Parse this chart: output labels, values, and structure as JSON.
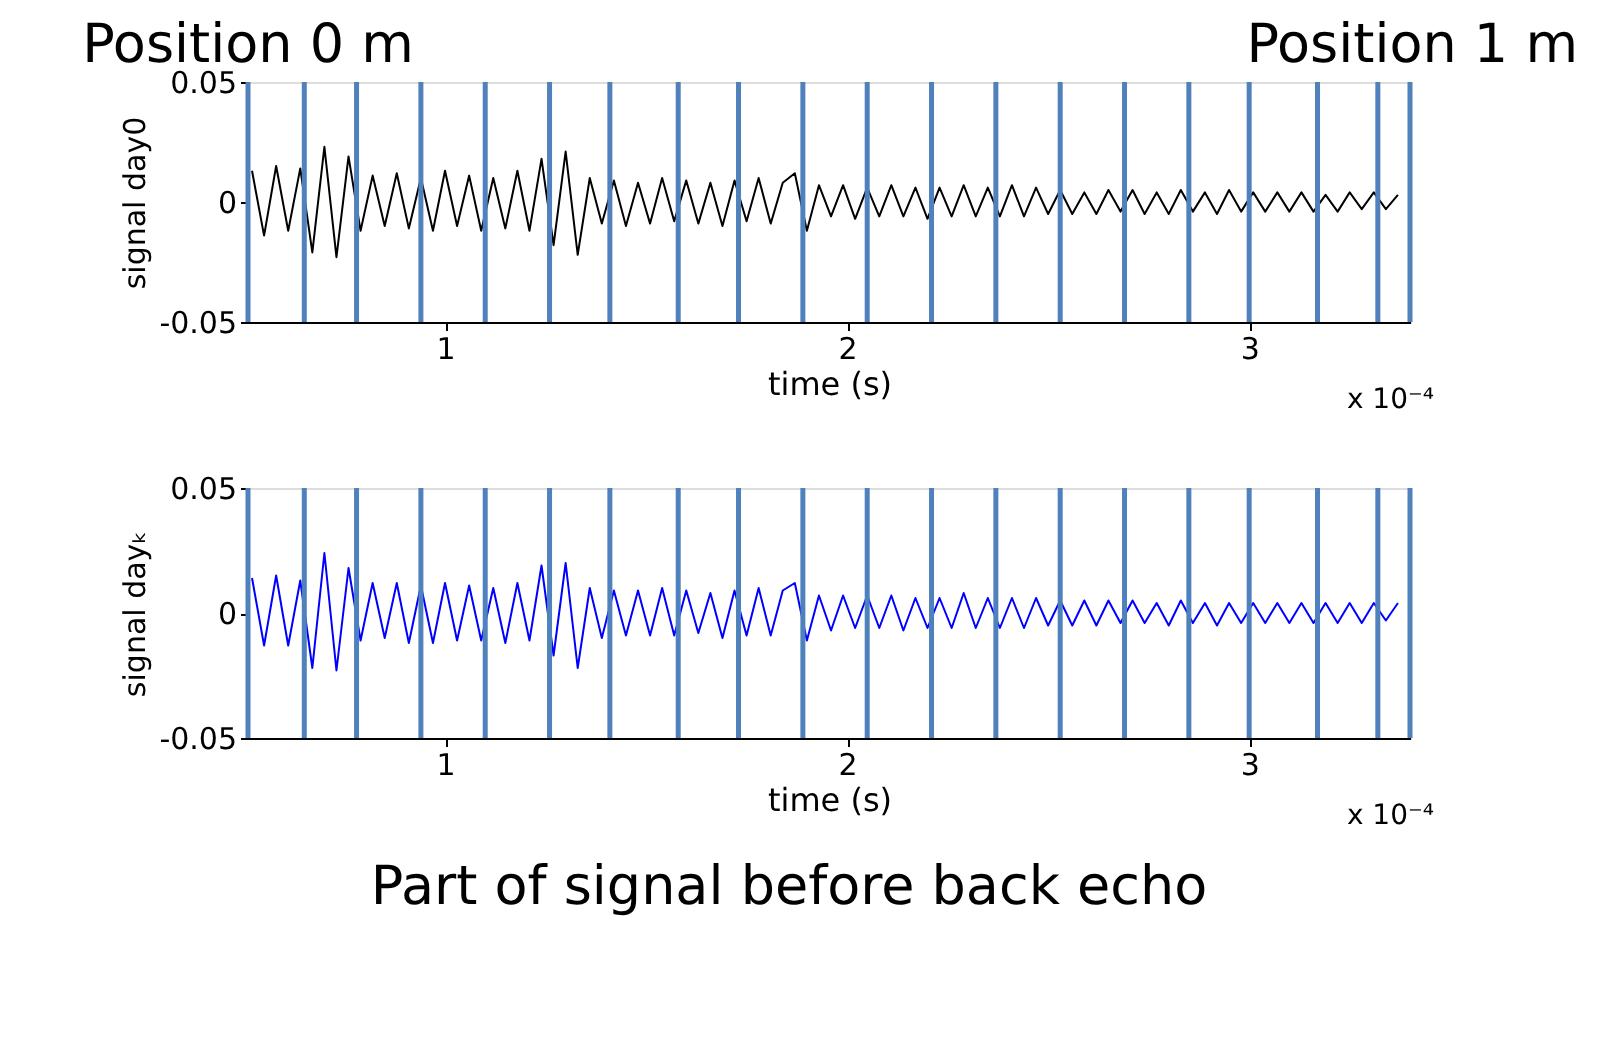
{
  "chart_data": [
    {
      "type": "line",
      "xlabel": "time (s)",
      "ylabel": "signal day0",
      "xlim": [
        0.51,
        3.4
      ],
      "ylim": [
        -0.05,
        0.05
      ],
      "xticks": [
        1,
        2,
        3
      ],
      "yticks": [
        -0.05,
        0,
        0.05
      ],
      "grid": false,
      "x": [
        0.52,
        0.55,
        0.58,
        0.61,
        0.64,
        0.67,
        0.7,
        0.73,
        0.76,
        0.79,
        0.82,
        0.85,
        0.88,
        0.91,
        0.94,
        0.97,
        1.0,
        1.03,
        1.06,
        1.09,
        1.12,
        1.15,
        1.18,
        1.21,
        1.24,
        1.27,
        1.3,
        1.33,
        1.36,
        1.39,
        1.42,
        1.45,
        1.48,
        1.51,
        1.54,
        1.57,
        1.6,
        1.63,
        1.66,
        1.69,
        1.72,
        1.75,
        1.78,
        1.81,
        1.84,
        1.87,
        1.9,
        1.93,
        1.96,
        1.99,
        2.02,
        2.05,
        2.08,
        2.11,
        2.14,
        2.17,
        2.2,
        2.23,
        2.26,
        2.29,
        2.32,
        2.35,
        2.38,
        2.41,
        2.44,
        2.47,
        2.5,
        2.53,
        2.56,
        2.59,
        2.62,
        2.65,
        2.68,
        2.71,
        2.74,
        2.77,
        2.8,
        2.83,
        2.86,
        2.89,
        2.92,
        2.95,
        2.98,
        3.01,
        3.04,
        3.07,
        3.1,
        3.13,
        3.16,
        3.19,
        3.22,
        3.25,
        3.28,
        3.31,
        3.34,
        3.37
      ],
      "series": [
        {
          "color": "#000000",
          "values": [
            0.013,
            -0.014,
            0.015,
            -0.012,
            0.014,
            -0.021,
            0.023,
            -0.023,
            0.019,
            -0.012,
            0.011,
            -0.01,
            0.012,
            -0.011,
            0.01,
            -0.012,
            0.013,
            -0.01,
            0.011,
            -0.012,
            0.01,
            -0.011,
            0.013,
            -0.012,
            0.018,
            -0.018,
            0.021,
            -0.022,
            0.01,
            -0.009,
            0.009,
            -0.01,
            0.008,
            -0.009,
            0.01,
            -0.008,
            0.009,
            -0.009,
            0.008,
            -0.01,
            0.009,
            -0.008,
            0.01,
            -0.009,
            0.008,
            0.012,
            -0.012,
            0.007,
            -0.006,
            0.007,
            -0.007,
            0.006,
            -0.006,
            0.007,
            -0.006,
            0.006,
            -0.007,
            0.006,
            -0.006,
            0.007,
            -0.006,
            0.006,
            -0.006,
            0.007,
            -0.006,
            0.006,
            -0.005,
            0.005,
            -0.005,
            0.004,
            -0.005,
            0.005,
            -0.004,
            0.005,
            -0.005,
            0.004,
            -0.005,
            0.005,
            -0.004,
            0.004,
            -0.005,
            0.005,
            -0.004,
            0.004,
            -0.004,
            0.004,
            -0.004,
            0.004,
            -0.004,
            0.003,
            -0.004,
            0.004,
            -0.003,
            0.004,
            -0.003,
            0.003
          ]
        }
      ],
      "ref_lines": [
        {
          "axis": "x",
          "value": 0.51,
          "color": "#4f81bd",
          "label": "Position 0 m"
        },
        {
          "axis": "x",
          "value": 0.65,
          "color": "#4f81bd"
        },
        {
          "axis": "x",
          "value": 0.78,
          "color": "#4f81bd"
        },
        {
          "axis": "x",
          "value": 0.94,
          "color": "#4f81bd"
        },
        {
          "axis": "x",
          "value": 1.1,
          "color": "#4f81bd"
        },
        {
          "axis": "x",
          "value": 1.26,
          "color": "#4f81bd"
        },
        {
          "axis": "x",
          "value": 1.41,
          "color": "#4f81bd"
        },
        {
          "axis": "x",
          "value": 1.58,
          "color": "#4f81bd"
        },
        {
          "axis": "x",
          "value": 1.73,
          "color": "#4f81bd"
        },
        {
          "axis": "x",
          "value": 1.89,
          "color": "#4f81bd"
        },
        {
          "axis": "x",
          "value": 2.05,
          "color": "#4f81bd"
        },
        {
          "axis": "x",
          "value": 2.21,
          "color": "#4f81bd"
        },
        {
          "axis": "x",
          "value": 2.37,
          "color": "#4f81bd"
        },
        {
          "axis": "x",
          "value": 2.53,
          "color": "#4f81bd"
        },
        {
          "axis": "x",
          "value": 2.69,
          "color": "#4f81bd"
        },
        {
          "axis": "x",
          "value": 2.85,
          "color": "#4f81bd"
        },
        {
          "axis": "x",
          "value": 3.0,
          "color": "#4f81bd"
        },
        {
          "axis": "x",
          "value": 3.17,
          "color": "#4f81bd"
        },
        {
          "axis": "x",
          "value": 3.32,
          "color": "#4f81bd"
        },
        {
          "axis": "x",
          "value": 3.4,
          "color": "#4f81bd",
          "label": "Position 1 m"
        }
      ],
      "annotations": [
        "x 10⁻⁴"
      ]
    },
    {
      "type": "line",
      "xlabel": "time (s)",
      "ylabel": "signal dayₖ",
      "xlim": [
        0.51,
        3.4
      ],
      "ylim": [
        -0.05,
        0.05
      ],
      "xticks": [
        1,
        2,
        3
      ],
      "yticks": [
        -0.05,
        0,
        0.05
      ],
      "grid": false,
      "x": [
        0.52,
        0.55,
        0.58,
        0.61,
        0.64,
        0.67,
        0.7,
        0.73,
        0.76,
        0.79,
        0.82,
        0.85,
        0.88,
        0.91,
        0.94,
        0.97,
        1.0,
        1.03,
        1.06,
        1.09,
        1.12,
        1.15,
        1.18,
        1.21,
        1.24,
        1.27,
        1.3,
        1.33,
        1.36,
        1.39,
        1.42,
        1.45,
        1.48,
        1.51,
        1.54,
        1.57,
        1.6,
        1.63,
        1.66,
        1.69,
        1.72,
        1.75,
        1.78,
        1.81,
        1.84,
        1.87,
        1.9,
        1.93,
        1.96,
        1.99,
        2.02,
        2.05,
        2.08,
        2.11,
        2.14,
        2.17,
        2.2,
        2.23,
        2.26,
        2.29,
        2.32,
        2.35,
        2.38,
        2.41,
        2.44,
        2.47,
        2.5,
        2.53,
        2.56,
        2.59,
        2.62,
        2.65,
        2.68,
        2.71,
        2.74,
        2.77,
        2.8,
        2.83,
        2.86,
        2.89,
        2.92,
        2.95,
        2.98,
        3.01,
        3.04,
        3.07,
        3.1,
        3.13,
        3.16,
        3.19,
        3.22,
        3.25,
        3.28,
        3.31,
        3.34,
        3.37
      ],
      "series": [
        {
          "color": "#0000ff",
          "values": [
            0.014,
            -0.013,
            0.015,
            -0.013,
            0.013,
            -0.022,
            0.024,
            -0.023,
            0.018,
            -0.011,
            0.012,
            -0.01,
            0.012,
            -0.012,
            0.011,
            -0.012,
            0.012,
            -0.011,
            0.011,
            -0.011,
            0.01,
            -0.012,
            0.012,
            -0.011,
            0.019,
            -0.017,
            0.02,
            -0.022,
            0.01,
            -0.01,
            0.009,
            -0.009,
            0.009,
            -0.009,
            0.01,
            -0.009,
            0.009,
            -0.008,
            0.008,
            -0.01,
            0.009,
            -0.009,
            0.01,
            -0.009,
            0.009,
            0.012,
            -0.011,
            0.007,
            -0.007,
            0.007,
            -0.006,
            0.007,
            -0.006,
            0.007,
            -0.007,
            0.006,
            -0.006,
            0.006,
            -0.006,
            0.008,
            -0.006,
            0.006,
            -0.006,
            0.006,
            -0.006,
            0.006,
            -0.005,
            0.005,
            -0.005,
            0.005,
            -0.005,
            0.005,
            -0.004,
            0.005,
            -0.004,
            0.004,
            -0.005,
            0.005,
            -0.004,
            0.004,
            -0.005,
            0.004,
            -0.004,
            0.004,
            -0.004,
            0.004,
            -0.004,
            0.004,
            -0.004,
            0.004,
            -0.004,
            0.004,
            -0.004,
            0.004,
            -0.003,
            0.004
          ]
        }
      ],
      "ref_lines": [
        {
          "axis": "x",
          "value": 0.51,
          "color": "#4f81bd"
        },
        {
          "axis": "x",
          "value": 0.65,
          "color": "#4f81bd"
        },
        {
          "axis": "x",
          "value": 0.78,
          "color": "#4f81bd"
        },
        {
          "axis": "x",
          "value": 0.94,
          "color": "#4f81bd"
        },
        {
          "axis": "x",
          "value": 1.1,
          "color": "#4f81bd"
        },
        {
          "axis": "x",
          "value": 1.26,
          "color": "#4f81bd"
        },
        {
          "axis": "x",
          "value": 1.41,
          "color": "#4f81bd"
        },
        {
          "axis": "x",
          "value": 1.58,
          "color": "#4f81bd"
        },
        {
          "axis": "x",
          "value": 1.73,
          "color": "#4f81bd"
        },
        {
          "axis": "x",
          "value": 1.89,
          "color": "#4f81bd"
        },
        {
          "axis": "x",
          "value": 2.05,
          "color": "#4f81bd"
        },
        {
          "axis": "x",
          "value": 2.21,
          "color": "#4f81bd"
        },
        {
          "axis": "x",
          "value": 2.37,
          "color": "#4f81bd"
        },
        {
          "axis": "x",
          "value": 2.53,
          "color": "#4f81bd"
        },
        {
          "axis": "x",
          "value": 2.69,
          "color": "#4f81bd"
        },
        {
          "axis": "x",
          "value": 2.85,
          "color": "#4f81bd"
        },
        {
          "axis": "x",
          "value": 3.0,
          "color": "#4f81bd"
        },
        {
          "axis": "x",
          "value": 3.17,
          "color": "#4f81bd"
        },
        {
          "axis": "x",
          "value": 3.32,
          "color": "#4f81bd"
        },
        {
          "axis": "x",
          "value": 3.4,
          "color": "#4f81bd"
        }
      ],
      "annotations": [
        "x 10⁻⁴",
        "Part of signal before back echo"
      ]
    }
  ]
}
